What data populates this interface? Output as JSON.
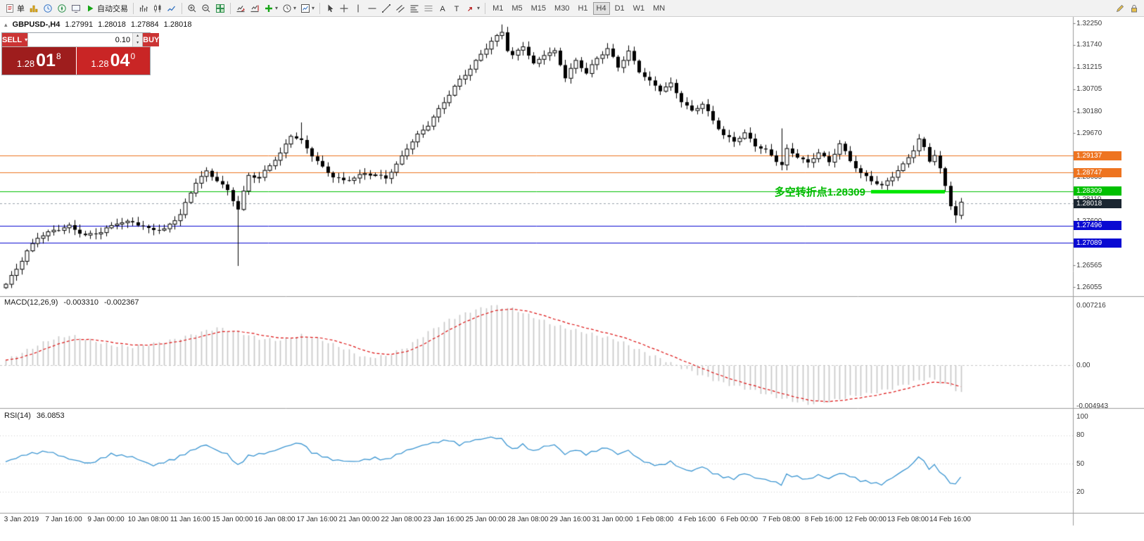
{
  "colors": {
    "toolbar_bg": "#f2f2f2",
    "candle_up": "#ffffff",
    "candle_down": "#000000",
    "candle_outline": "#000000",
    "macd_histogram": "#c6c6c6",
    "macd_signal": "#dd1111",
    "rsi_line": "#3c96d2",
    "orange_line": "#ee7420",
    "blue_line": "#0a0ad2",
    "green_line": "#00c000",
    "highlight_green": "#00e600",
    "current_price_badge": "#1b2631",
    "annotation_green": "#00bb00"
  },
  "toolbar": {
    "groups": [
      {
        "items": [
          {
            "name": "new-order-icon",
            "icon": "doc",
            "text": "单"
          },
          {
            "name": "profiles-icon",
            "icon": "gold-columns"
          },
          {
            "name": "market-watch-icon",
            "icon": "clock-blue"
          },
          {
            "name": "navigator-icon",
            "icon": "compass"
          },
          {
            "name": "terminal-icon",
            "icon": "terminal"
          },
          {
            "name": "autotrading-button",
            "icon": "play",
            "text": "自动交易"
          }
        ]
      },
      {
        "items": [
          {
            "name": "bar-chart-icon",
            "icon": "bars"
          },
          {
            "name": "candlestick-chart-icon",
            "icon": "candles"
          },
          {
            "name": "line-chart-icon",
            "icon": "line"
          }
        ]
      },
      {
        "items": [
          {
            "name": "zoom-in-icon",
            "icon": "zoom-in"
          },
          {
            "name": "zoom-out-icon",
            "icon": "zoom-out"
          },
          {
            "name": "tile-windows-icon",
            "icon": "grid-green"
          }
        ]
      },
      {
        "items": [
          {
            "name": "auto-scroll-icon",
            "icon": "scroll"
          },
          {
            "name": "chart-shift-icon",
            "icon": "shift"
          },
          {
            "name": "indicators-icon",
            "icon": "plus-green",
            "dropdown": true
          },
          {
            "name": "periods-icon",
            "icon": "clock",
            "dropdown": true
          },
          {
            "name": "templates-icon",
            "icon": "template",
            "dropdown": true
          }
        ]
      },
      {
        "items": [
          {
            "name": "cursor-icon",
            "icon": "cursor"
          },
          {
            "name": "crosshair-icon",
            "icon": "cross"
          },
          {
            "name": "vertical-line-icon",
            "icon": "vline"
          },
          {
            "name": "horizontal-line-icon",
            "icon": "hline"
          },
          {
            "name": "trendline-icon",
            "icon": "trend"
          },
          {
            "name": "channel-icon",
            "icon": "channel"
          },
          {
            "name": "fibonacci-icon",
            "icon": "fibo"
          },
          {
            "name": "levels-icon",
            "icon": "levels"
          },
          {
            "name": "text-icon",
            "icon": "textA"
          },
          {
            "name": "label-icon",
            "icon": "textT"
          },
          {
            "name": "arrows-icon",
            "icon": "arrow-mark",
            "dropdown": true
          }
        ]
      }
    ],
    "timeframes": [
      "M1",
      "M5",
      "M15",
      "M30",
      "H1",
      "H4",
      "D1",
      "W1",
      "MN"
    ],
    "active_timeframe": "H4",
    "right_items": [
      {
        "name": "edit-icon",
        "icon": "pencil"
      },
      {
        "name": "lock-icon",
        "icon": "lock"
      }
    ]
  },
  "symbol_info": {
    "title": "GBPUSD-,H4",
    "open": "1.27991",
    "high": "1.28018",
    "low": "1.27884",
    "close": "1.28018"
  },
  "one_click": {
    "sell_label": "SELL",
    "buy_label": "BUY",
    "volume": "0.10",
    "sell_price": {
      "base": "1.28",
      "pips": "01",
      "point": "8"
    },
    "buy_price": {
      "base": "1.28",
      "pips": "04",
      "point": "0"
    }
  },
  "chart_data": {
    "type": "candlestick",
    "symbol": "GBPUSD-",
    "timeframe": "H4",
    "description": "GBPUSD 4-hour candlestick chart, early Jan to mid Feb 2019; price path, indicator paths and line levels read from the screenshot",
    "last_ohlc": {
      "open": 1.27991,
      "high": 1.28018,
      "low": 1.27884,
      "close": 1.28018
    },
    "price_range_visible": [
      1.26055,
      1.3225
    ],
    "bars_total": 182,
    "y_ticks": [
      "1.32250",
      "1.31740",
      "1.31215",
      "1.30705",
      "1.30180",
      "1.29670",
      "1.29145",
      "1.28635",
      "1.28110",
      "1.27600",
      "1.27075",
      "1.26565",
      "1.26055"
    ],
    "x_labels": [
      "3 Jan 2019",
      "7 Jan 16:00",
      "9 Jan 00:00",
      "10 Jan 08:00",
      "11 Jan 16:00",
      "15 Jan 00:00",
      "16 Jan 08:00",
      "17 Jan 16:00",
      "21 Jan 00:00",
      "22 Jan 08:00",
      "23 Jan 16:00",
      "25 Jan 00:00",
      "28 Jan 08:00",
      "29 Jan 16:00",
      "31 Jan 00:00",
      "1 Feb 08:00",
      "4 Feb 16:00",
      "6 Feb 00:00",
      "7 Feb 08:00",
      "8 Feb 16:00",
      "12 Feb 00:00",
      "13 Feb 08:00",
      "14 Feb 16:00"
    ],
    "price_path_anchors": [
      [
        0,
        1.2612
      ],
      [
        2,
        1.2648
      ],
      [
        4,
        1.2689
      ],
      [
        6,
        1.2722
      ],
      [
        9,
        1.2738
      ],
      [
        12,
        1.2748
      ],
      [
        15,
        1.2726
      ],
      [
        18,
        1.2735
      ],
      [
        21,
        1.2756
      ],
      [
        24,
        1.2758
      ],
      [
        27,
        1.2742
      ],
      [
        30,
        1.274
      ],
      [
        33,
        1.2776
      ],
      [
        36,
        1.2852
      ],
      [
        38,
        1.2876
      ],
      [
        40,
        1.2856
      ],
      [
        42,
        1.2832
      ],
      [
        44,
        1.2788
      ],
      [
        46,
        1.2868
      ],
      [
        48,
        1.2862
      ],
      [
        50,
        1.2892
      ],
      [
        52,
        1.2918
      ],
      [
        54,
        1.2962
      ],
      [
        56,
        1.2948
      ],
      [
        58,
        1.2915
      ],
      [
        60,
        1.2886
      ],
      [
        62,
        1.2865
      ],
      [
        64,
        1.2855
      ],
      [
        66,
        1.2862
      ],
      [
        68,
        1.2872
      ],
      [
        70,
        1.2868
      ],
      [
        72,
        1.2862
      ],
      [
        74,
        1.2892
      ],
      [
        76,
        1.2932
      ],
      [
        78,
        1.2962
      ],
      [
        80,
        1.2986
      ],
      [
        82,
        1.3022
      ],
      [
        84,
        1.3058
      ],
      [
        86,
        1.3092
      ],
      [
        88,
        1.3118
      ],
      [
        90,
        1.3152
      ],
      [
        92,
        1.3182
      ],
      [
        94,
        1.3205
      ],
      [
        95,
        1.3162
      ],
      [
        96,
        1.3148
      ],
      [
        98,
        1.3172
      ],
      [
        100,
        1.3128
      ],
      [
        102,
        1.3152
      ],
      [
        104,
        1.3158
      ],
      [
        106,
        1.3098
      ],
      [
        108,
        1.3136
      ],
      [
        110,
        1.3108
      ],
      [
        112,
        1.3142
      ],
      [
        114,
        1.3165
      ],
      [
        116,
        1.3122
      ],
      [
        118,
        1.3158
      ],
      [
        120,
        1.3112
      ],
      [
        122,
        1.3088
      ],
      [
        124,
        1.3068
      ],
      [
        126,
        1.3082
      ],
      [
        128,
        1.3042
      ],
      [
        130,
        1.3018
      ],
      [
        132,
        1.3036
      ],
      [
        134,
        1.2996
      ],
      [
        136,
        1.2962
      ],
      [
        138,
        1.2948
      ],
      [
        140,
        1.2966
      ],
      [
        142,
        1.2938
      ],
      [
        144,
        1.2926
      ],
      [
        146,
        1.2902
      ],
      [
        147,
        1.2892
      ],
      [
        148,
        1.2928
      ],
      [
        150,
        1.2912
      ],
      [
        152,
        1.2896
      ],
      [
        154,
        1.2922
      ],
      [
        156,
        1.2898
      ],
      [
        158,
        1.2942
      ],
      [
        160,
        1.2902
      ],
      [
        162,
        1.2872
      ],
      [
        164,
        1.2856
      ],
      [
        166,
        1.2842
      ],
      [
        168,
        1.2866
      ],
      [
        170,
        1.2892
      ],
      [
        172,
        1.2928
      ],
      [
        173,
        1.2952
      ],
      [
        174,
        1.2932
      ],
      [
        175,
        1.2902
      ],
      [
        176,
        1.2916
      ],
      [
        177,
        1.2882
      ],
      [
        178,
        1.2842
      ],
      [
        179,
        1.2798
      ],
      [
        180,
        1.2774
      ],
      [
        181,
        1.2802
      ]
    ],
    "wick_events": [
      {
        "bar": 44,
        "low": 1.2655
      },
      {
        "bar": 56,
        "high": 1.2992
      },
      {
        "bar": 94,
        "high": 1.3222
      },
      {
        "bar": 147,
        "high": 1.2978
      },
      {
        "bar": 180,
        "low": 1.2756
      }
    ],
    "horizontal_lines": [
      {
        "price": 1.29137,
        "label": "1.29137",
        "color": "#ee7420",
        "style": "solid"
      },
      {
        "price": 1.28747,
        "label": "1.28747",
        "color": "#ee7420",
        "style": "solid"
      },
      {
        "price": 1.28309,
        "label": "1.28309",
        "color": "#00c000",
        "style": "solid"
      },
      {
        "price": 1.28018,
        "label": "1.28018",
        "color": "#1b2631",
        "style": "dashed",
        "role": "bid"
      },
      {
        "price": 1.27496,
        "label": "1.27496",
        "color": "#0a0ad2",
        "style": "solid"
      },
      {
        "price": 1.27089,
        "label": "1.27089",
        "color": "#0a0ad2",
        "style": "solid"
      }
    ],
    "highlight_segment": {
      "price": 1.28309,
      "from_bar": 164,
      "to_bar": 178,
      "color": "#00e600",
      "thickness": 5
    },
    "annotation": {
      "text": "多空转折点1.28309",
      "color": "#00bb00",
      "price": 1.28309
    },
    "macd": {
      "label": "MACD(12,26,9)",
      "value_main": "-0.003310",
      "value_signal": "-0.002367",
      "y_ticks": [
        "0.007216",
        "0.00",
        "-0.004943"
      ],
      "anchors": [
        [
          0,
          0.0006
        ],
        [
          4,
          0.0018
        ],
        [
          8,
          0.003
        ],
        [
          12,
          0.0036
        ],
        [
          16,
          0.003
        ],
        [
          20,
          0.0024
        ],
        [
          24,
          0.0022
        ],
        [
          28,
          0.0026
        ],
        [
          32,
          0.0031
        ],
        [
          36,
          0.0038
        ],
        [
          40,
          0.0045
        ],
        [
          44,
          0.004
        ],
        [
          48,
          0.0032
        ],
        [
          52,
          0.003
        ],
        [
          56,
          0.0036
        ],
        [
          60,
          0.003
        ],
        [
          64,
          0.002
        ],
        [
          68,
          0.0009
        ],
        [
          72,
          0.0011
        ],
        [
          76,
          0.0022
        ],
        [
          80,
          0.004
        ],
        [
          84,
          0.0055
        ],
        [
          88,
          0.0065
        ],
        [
          92,
          0.0072
        ],
        [
          96,
          0.0068
        ],
        [
          100,
          0.0058
        ],
        [
          104,
          0.0048
        ],
        [
          108,
          0.0042
        ],
        [
          112,
          0.0036
        ],
        [
          116,
          0.003
        ],
        [
          120,
          0.0018
        ],
        [
          124,
          0.0008
        ],
        [
          128,
          -0.0003
        ],
        [
          132,
          -0.0013
        ],
        [
          136,
          -0.0022
        ],
        [
          140,
          -0.0028
        ],
        [
          144,
          -0.0035
        ],
        [
          148,
          -0.0042
        ],
        [
          152,
          -0.0047
        ],
        [
          156,
          -0.0044
        ],
        [
          160,
          -0.0038
        ],
        [
          164,
          -0.0034
        ],
        [
          168,
          -0.0028
        ],
        [
          172,
          -0.002
        ],
        [
          175,
          -0.0016
        ],
        [
          178,
          -0.0023
        ],
        [
          181,
          -0.0033
        ]
      ]
    },
    "rsi": {
      "label": "RSI(14)",
      "value": 36.0853,
      "value_text": "36.0853",
      "y_ticks": [
        "100",
        "80",
        "50",
        "20"
      ],
      "anchors": [
        [
          0,
          52
        ],
        [
          4,
          60
        ],
        [
          8,
          63
        ],
        [
          12,
          55
        ],
        [
          16,
          50
        ],
        [
          20,
          60
        ],
        [
          24,
          57
        ],
        [
          28,
          48
        ],
        [
          32,
          55
        ],
        [
          36,
          66
        ],
        [
          38,
          70
        ],
        [
          40,
          64
        ],
        [
          42,
          60
        ],
        [
          44,
          48
        ],
        [
          46,
          58
        ],
        [
          50,
          62
        ],
        [
          54,
          70
        ],
        [
          56,
          72
        ],
        [
          58,
          62
        ],
        [
          62,
          54
        ],
        [
          66,
          52
        ],
        [
          70,
          56
        ],
        [
          72,
          54
        ],
        [
          76,
          64
        ],
        [
          80,
          71
        ],
        [
          84,
          75
        ],
        [
          86,
          70
        ],
        [
          88,
          74
        ],
        [
          92,
          78
        ],
        [
          94,
          76
        ],
        [
          96,
          65
        ],
        [
          98,
          70
        ],
        [
          100,
          63
        ],
        [
          102,
          68
        ],
        [
          104,
          70
        ],
        [
          106,
          60
        ],
        [
          108,
          65
        ],
        [
          110,
          60
        ],
        [
          112,
          64
        ],
        [
          114,
          67
        ],
        [
          116,
          60
        ],
        [
          118,
          64
        ],
        [
          120,
          55
        ],
        [
          122,
          50
        ],
        [
          124,
          48
        ],
        [
          126,
          52
        ],
        [
          128,
          45
        ],
        [
          130,
          42
        ],
        [
          132,
          47
        ],
        [
          134,
          40
        ],
        [
          136,
          36
        ],
        [
          138,
          34
        ],
        [
          140,
          40
        ],
        [
          142,
          35
        ],
        [
          144,
          33
        ],
        [
          146,
          30
        ],
        [
          147,
          28
        ],
        [
          148,
          38
        ],
        [
          150,
          36
        ],
        [
          152,
          33
        ],
        [
          154,
          38
        ],
        [
          156,
          34
        ],
        [
          158,
          40
        ],
        [
          160,
          37
        ],
        [
          162,
          32
        ],
        [
          164,
          30
        ],
        [
          166,
          28
        ],
        [
          168,
          35
        ],
        [
          170,
          42
        ],
        [
          172,
          50
        ],
        [
          173,
          58
        ],
        [
          174,
          52
        ],
        [
          175,
          45
        ],
        [
          176,
          48
        ],
        [
          177,
          42
        ],
        [
          178,
          36
        ],
        [
          179,
          30
        ],
        [
          180,
          28
        ],
        [
          181,
          36
        ]
      ]
    }
  }
}
